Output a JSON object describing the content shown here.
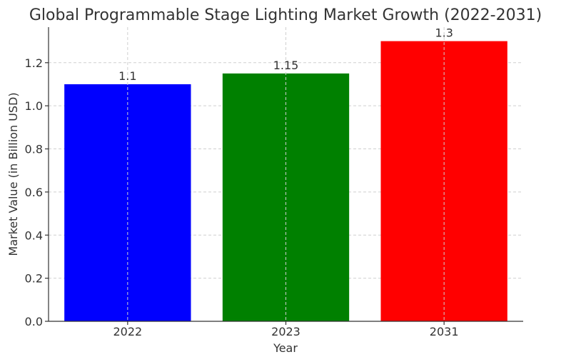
{
  "chart_data": {
    "type": "bar",
    "title": "Global Programmable Stage Lighting Market Growth (2022-2031)",
    "xlabel": "Year",
    "ylabel": "Market Value (in Billion USD)",
    "categories": [
      "2022",
      "2023",
      "2031"
    ],
    "values": [
      1.1,
      1.15,
      1.3
    ],
    "data_labels": [
      "1.1",
      "1.15",
      "1.3"
    ],
    "bar_colors": [
      "#0000ff",
      "#008000",
      "#ff0000"
    ],
    "ylim": [
      0,
      1.365
    ],
    "yticks": [
      0.0,
      0.2,
      0.4,
      0.6,
      0.8,
      1.0,
      1.2
    ],
    "ytick_labels": [
      "0.0",
      "0.2",
      "0.4",
      "0.6",
      "0.8",
      "1.0",
      "1.2"
    ],
    "grid": true,
    "legend": "none"
  }
}
